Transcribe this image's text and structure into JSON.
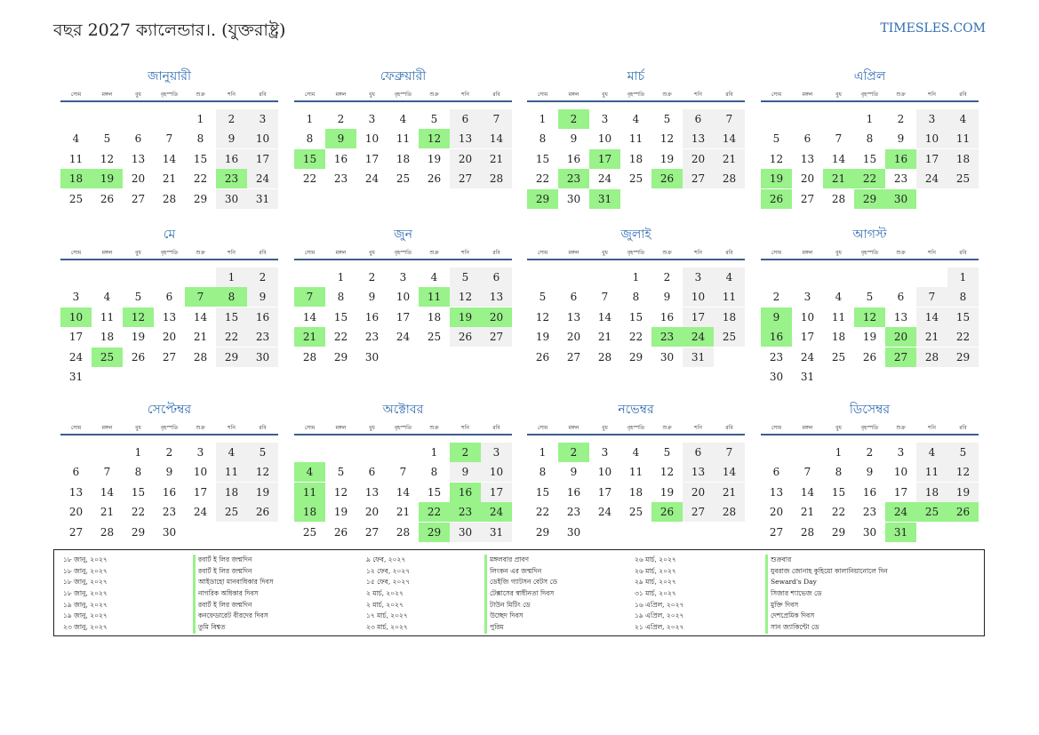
{
  "header": {
    "title": "বছর 2027 ক্যালেন্ডার।. (যুক্তরাষ্ট্র)",
    "site": "TIMESLES.COM"
  },
  "weekdays": [
    "সোম",
    "মঙ্গল",
    "বুধ",
    "বৃহস্পতি",
    "শুক্র",
    "শনি",
    "রবি"
  ],
  "colors": {
    "accent": "#2f6db0",
    "holiday": "#99f28a",
    "weekend": "#f1f1f1",
    "rule": "#3b5e8c"
  },
  "months": [
    {
      "name": "জানুয়ারী",
      "offset": 4,
      "days": 31,
      "holidays": [
        18,
        19,
        23
      ]
    },
    {
      "name": "ফেব্রুয়ারী",
      "offset": 0,
      "days": 28,
      "holidays": [
        9,
        12,
        15
      ]
    },
    {
      "name": "মার্চ",
      "offset": 0,
      "days": 31,
      "holidays": [
        2,
        17,
        23,
        26,
        29,
        31
      ]
    },
    {
      "name": "এপ্রিল",
      "offset": 3,
      "days": 30,
      "holidays": [
        16,
        19,
        21,
        22,
        26,
        29,
        30
      ]
    },
    {
      "name": "মে",
      "offset": 5,
      "days": 31,
      "holidays": [
        7,
        8,
        10,
        12,
        25
      ]
    },
    {
      "name": "জুন",
      "offset": 1,
      "days": 30,
      "holidays": [
        7,
        11,
        19,
        20,
        21
      ]
    },
    {
      "name": "জুলাই",
      "offset": 3,
      "days": 31,
      "holidays": [
        23,
        24
      ]
    },
    {
      "name": "আগস্ট",
      "offset": 6,
      "days": 31,
      "holidays": [
        9,
        12,
        16,
        20,
        27
      ]
    },
    {
      "name": "সেপ্টেম্বর",
      "offset": 2,
      "days": 30,
      "holidays": []
    },
    {
      "name": "অক্টোবর",
      "offset": 4,
      "days": 31,
      "holidays": [
        2,
        4,
        11,
        16,
        18,
        22,
        23,
        24,
        29
      ]
    },
    {
      "name": "নভেম্বর",
      "offset": 0,
      "days": 30,
      "holidays": [
        2,
        26
      ]
    },
    {
      "name": "ডিসেম্বর",
      "offset": 2,
      "days": 31,
      "holidays": [
        24,
        25,
        26,
        31
      ]
    }
  ],
  "holidays_list": {
    "col1_dates": [
      "১৮ জানু, ২০২৭",
      "১৮ জানু, ২০২৭",
      "১৮ জানু, ২০২৭",
      "১৮ জানু, ২০২৭",
      "১৯ জানু, ২০২৭",
      "১৯ জানু, ২০২৭",
      "২৩ জানু, ২০২৭"
    ],
    "col1_names": [
      "রবার্ট ই লির জন্মদিন",
      "রবার্ট ই লির জন্মদিন",
      "আইডাহো মানবাধিকার দিবস",
      "নাগরিক অধিকার দিবস",
      "রবার্ট ই লির জন্মদিন",
      "কনফেডারেট বীরদের দিবস",
      "তুমি বিশ্বত"
    ],
    "col2_dates": [
      "৯ ফেব, ২০২৭",
      "১২ ফেব, ২০২৭",
      "১৫ ফেব, ২০২৭",
      "২ মার্চ, ২০২৭",
      "২ মার্চ, ২০২৭",
      "১৭ মার্চ, ২০২৭",
      "২৩ মার্চ, ২০২৭"
    ],
    "col2_names": [
      "মঙ্গলবার প্রাবণ",
      "লিংকন এর জন্মদিন",
      "ডেইজি গ্যাটসন বেটস ডে",
      "টেক্সাসের স্বাধীনতা দিবস",
      "টাউন মিটিং ডে",
      "উচ্ছেদ দিবস",
      "পুরিম"
    ],
    "col3_dates": [
      "২৬ মার্চ, ২০২৭",
      "২৬ মার্চ, ২০২৭",
      "২৯ মার্চ, ২০২৭",
      "৩১ মার্চ, ২০২৭",
      "১৬ এপ্রিল, ২০২৭",
      "১৯ এপ্রিল, ২০২৭",
      "২১ এপ্রিল, ২০২৭"
    ],
    "col3_names": [
      "শুক্রবার",
      "যুবরাজ জোনাহ কুহিয়ো কালানিয়ানোলে দিন",
      "Seward's Day",
      "সিজার শ্যাভেজ ডে",
      "মুক্তি দিবস",
      "দেশপ্রেমিক দিবস",
      "সান জ্যাকিন্টো ডে"
    ]
  }
}
